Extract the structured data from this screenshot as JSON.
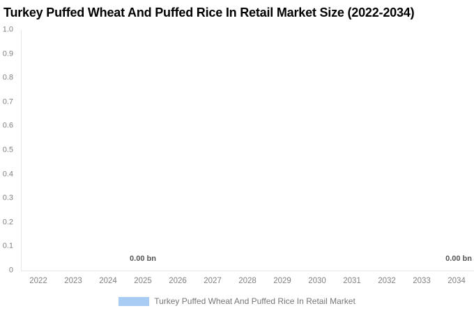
{
  "chart_data": {
    "type": "bar",
    "title": "Turkey Puffed Wheat And Puffed Rice In Retail Market Size (2022-2034)",
    "categories": [
      "2022",
      "2023",
      "2024",
      "2025",
      "2026",
      "2027",
      "2028",
      "2029",
      "2030",
      "2031",
      "2032",
      "2033",
      "2034"
    ],
    "series": [
      {
        "name": "Turkey Puffed Wheat And Puffed Rice In Retail Market",
        "values": [
          0,
          0,
          0,
          0,
          0,
          0,
          0,
          0,
          0,
          0,
          0,
          0,
          0
        ]
      }
    ],
    "y_ticks": [
      "1.0",
      "0.9",
      "0.8",
      "0.7",
      "0.6",
      "0.5",
      "0.4",
      "0.3",
      "0.2",
      "0.1",
      "0"
    ],
    "ylim": [
      0,
      1.0
    ],
    "xlabel": "",
    "ylabel": "",
    "grid": false,
    "legend_position": "bottom-center",
    "annotations": [
      {
        "text": "0.00 bn",
        "category": "2025",
        "align": "center"
      },
      {
        "text": "0.00 bn",
        "category": "2034",
        "align": "right"
      }
    ],
    "colors": {
      "series": "#a8ccf4",
      "axis_line": "#e6e6e6",
      "tick_label": "#808080",
      "annotation": "#555555",
      "legend_text": "#757575",
      "title": "#000000"
    }
  }
}
